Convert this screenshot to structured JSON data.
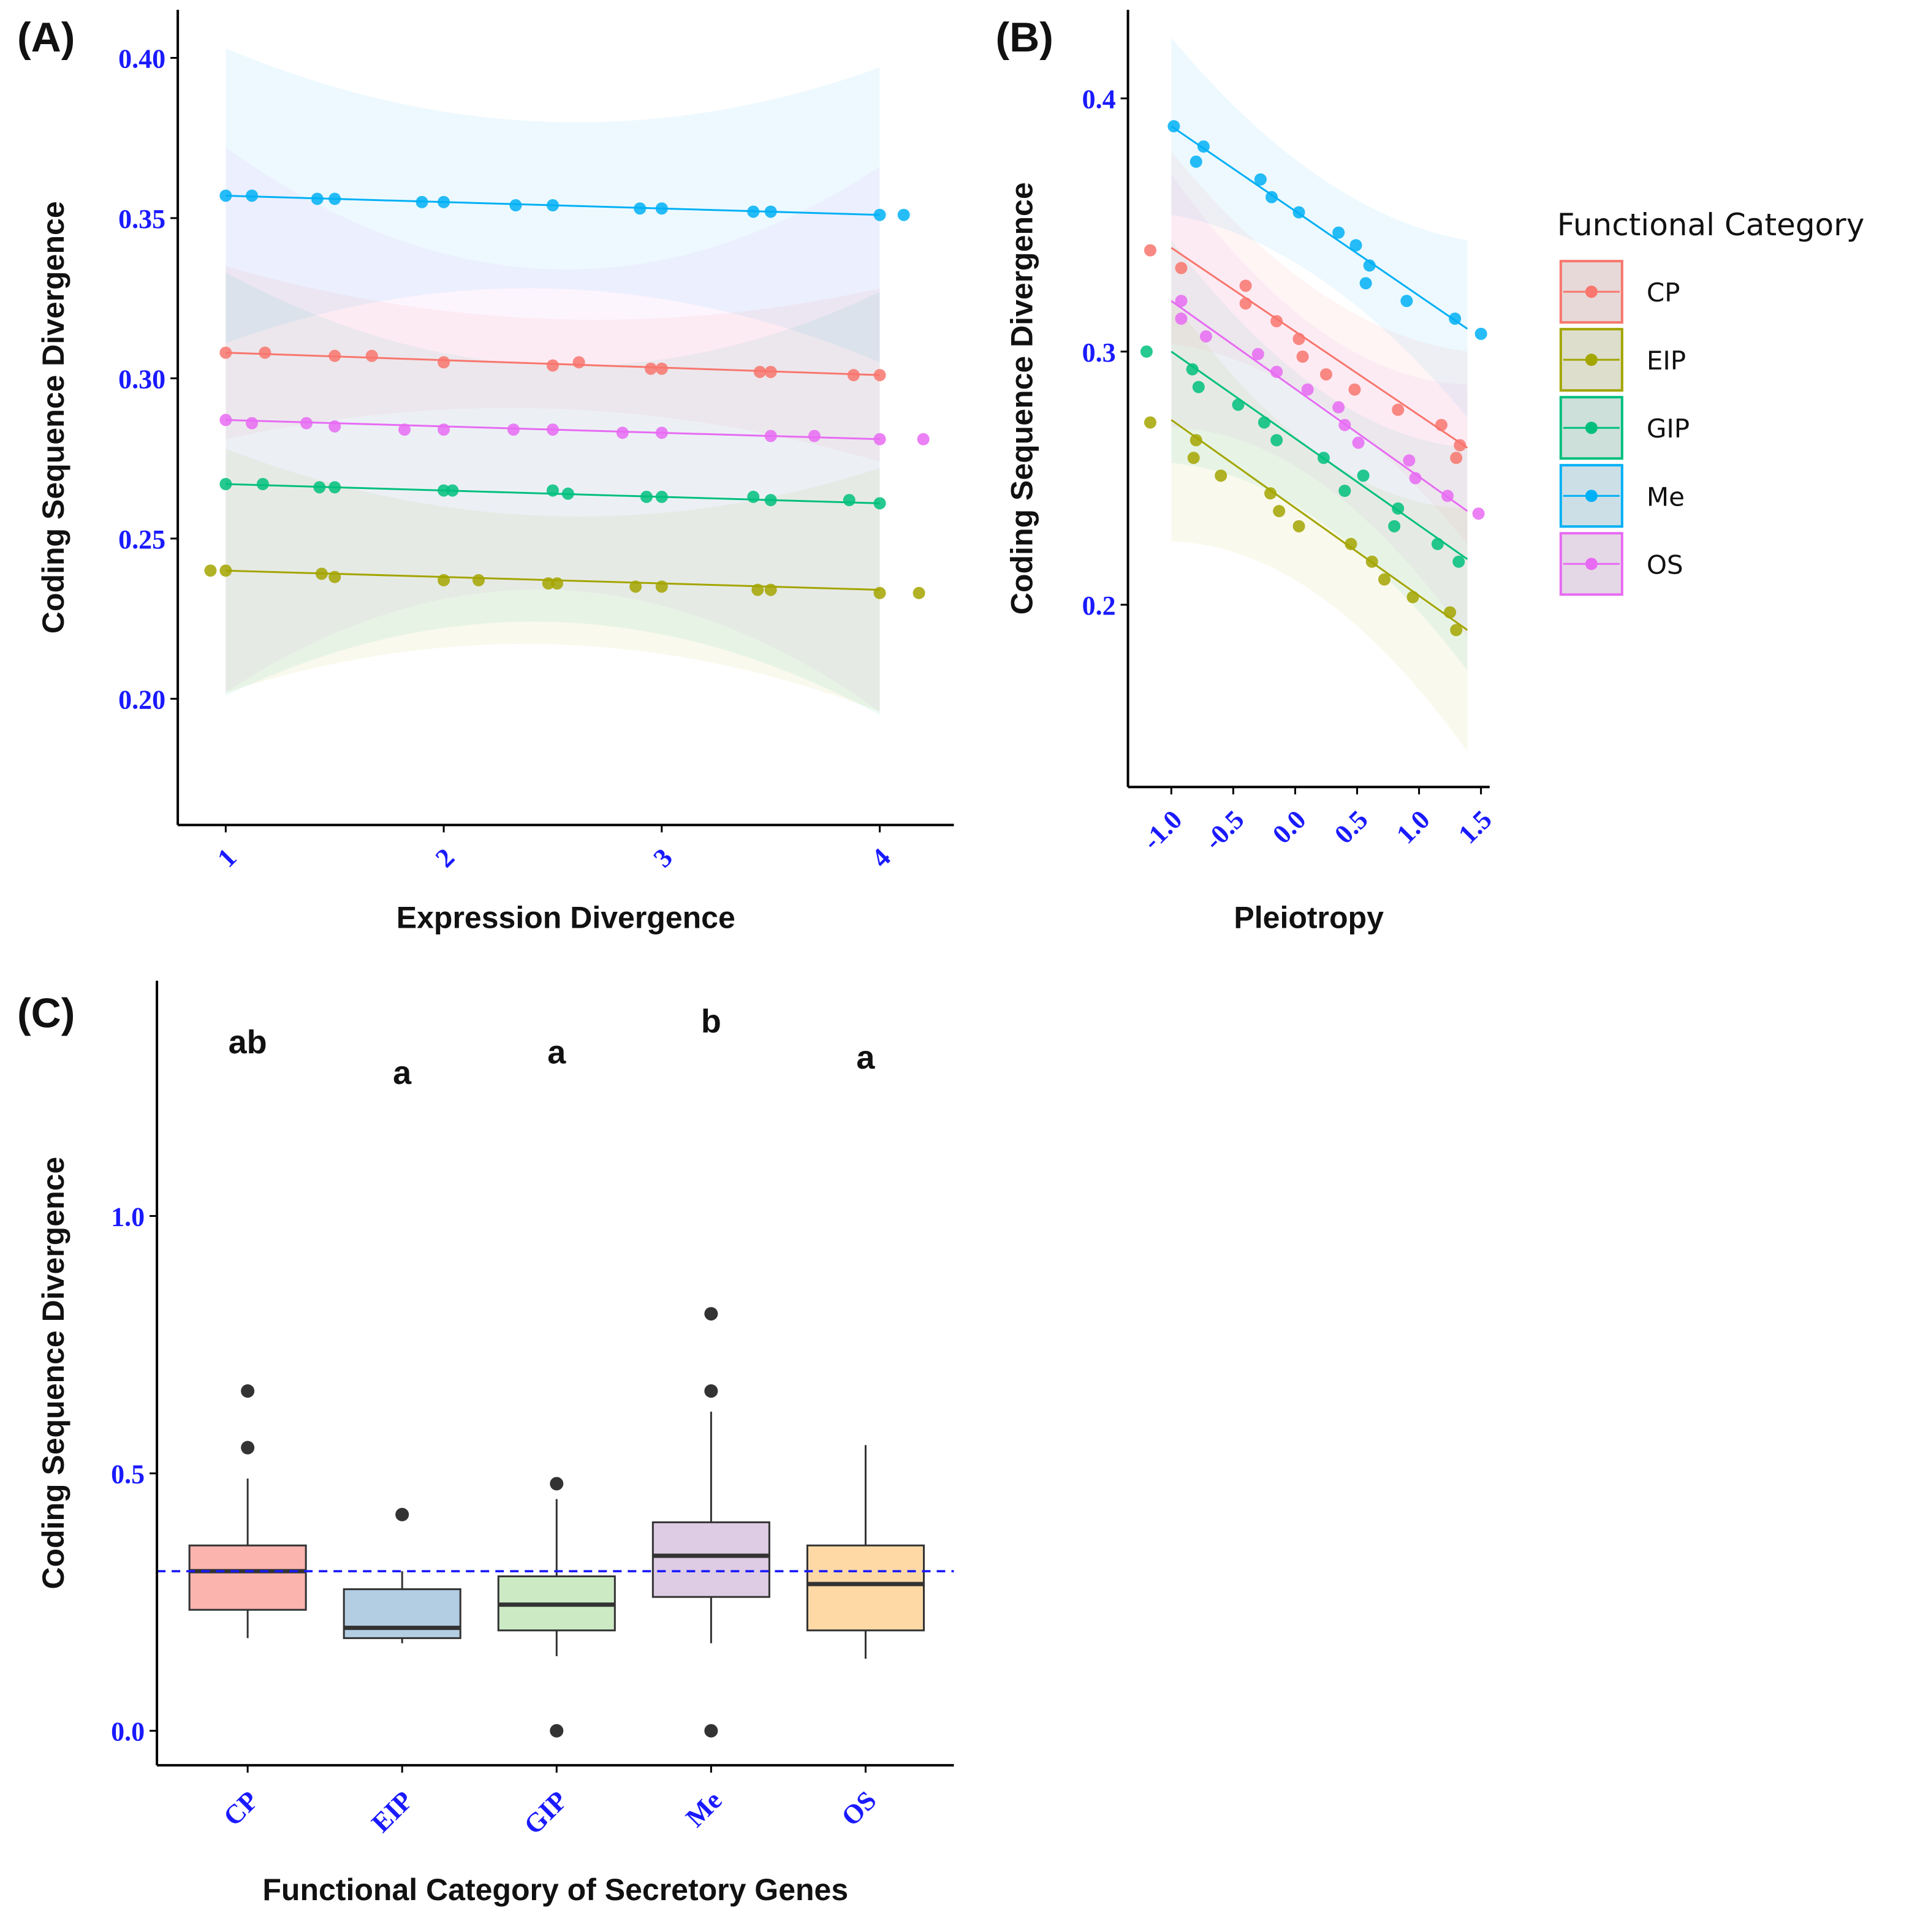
{
  "legend": {
    "title": "Functional Category",
    "entries": [
      {
        "label": "CP",
        "color": "#F8766D"
      },
      {
        "label": "EIP",
        "color": "#A3A500"
      },
      {
        "label": "GIP",
        "color": "#00BF7D"
      },
      {
        "label": "Me",
        "color": "#00B0F6"
      },
      {
        "label": "OS",
        "color": "#E76BF3"
      }
    ]
  },
  "chart_data": [
    {
      "panel_label": "(A)",
      "type": "scatter",
      "xlabel": "Expression Divergence",
      "ylabel": "Coding Sequence Divergence",
      "xlim": [
        0.78,
        4.34
      ],
      "ylim": [
        0.1606,
        0.415
      ],
      "xticks": [
        1,
        2,
        3,
        4
      ],
      "xtick_labels": [
        "1",
        "2",
        "3",
        "4"
      ],
      "yticks": [
        0.2,
        0.25,
        0.3,
        0.35,
        0.4
      ],
      "ytick_labels": [
        "0.20",
        "0.25",
        "0.30",
        "0.35",
        "0.40"
      ],
      "series": [
        {
          "name": "CP",
          "color": "#F8766D",
          "fit": {
            "x": [
              1,
              4
            ],
            "y": [
              0.308,
              0.301
            ]
          },
          "ci_halfwidth": {
            "ends": 0.027,
            "mid": 0.014
          },
          "points": [
            [
              1,
              0.308
            ],
            [
              1.18,
              0.308
            ],
            [
              1.5,
              0.307
            ],
            [
              1.67,
              0.307
            ],
            [
              2,
              0.305
            ],
            [
              2.5,
              0.304
            ],
            [
              2.62,
              0.305
            ],
            [
              2.95,
              0.303
            ],
            [
              3,
              0.303
            ],
            [
              3.45,
              0.302
            ],
            [
              3.5,
              0.302
            ],
            [
              3.88,
              0.301
            ],
            [
              4,
              0.301
            ]
          ]
        },
        {
          "name": "EIP",
          "color": "#A3A500",
          "fit": {
            "x": [
              1,
              4
            ],
            "y": [
              0.24,
              0.234
            ]
          },
          "ci_halfwidth": {
            "ends": 0.038,
            "mid": 0.02
          },
          "points": [
            [
              0.93,
              0.24
            ],
            [
              1,
              0.24
            ],
            [
              1.44,
              0.239
            ],
            [
              1.5,
              0.238
            ],
            [
              2,
              0.237
            ],
            [
              2.16,
              0.237
            ],
            [
              2.48,
              0.236
            ],
            [
              2.52,
              0.236
            ],
            [
              2.88,
              0.235
            ],
            [
              3,
              0.235
            ],
            [
              3.44,
              0.234
            ],
            [
              3.5,
              0.234
            ],
            [
              4,
              0.233
            ],
            [
              4.18,
              0.233
            ]
          ]
        },
        {
          "name": "GIP",
          "color": "#00BF7D",
          "fit": {
            "x": [
              1,
              4
            ],
            "y": [
              0.267,
              0.261
            ]
          },
          "ci_halfwidth": {
            "ends": 0.066,
            "mid": 0.04
          },
          "points": [
            [
              1,
              0.267
            ],
            [
              1.17,
              0.267
            ],
            [
              1.43,
              0.266
            ],
            [
              1.5,
              0.266
            ],
            [
              2,
              0.265
            ],
            [
              2.04,
              0.265
            ],
            [
              2.5,
              0.265
            ],
            [
              2.57,
              0.264
            ],
            [
              2.93,
              0.263
            ],
            [
              3,
              0.263
            ],
            [
              3.42,
              0.263
            ],
            [
              3.5,
              0.262
            ],
            [
              3.86,
              0.262
            ],
            [
              4,
              0.261
            ]
          ]
        },
        {
          "name": "Me",
          "color": "#00B0F6",
          "fit": {
            "x": [
              1,
              4
            ],
            "y": [
              0.357,
              0.351
            ]
          },
          "ci_halfwidth": {
            "ends": 0.046,
            "mid": 0.026
          },
          "points": [
            [
              1,
              0.357
            ],
            [
              1.12,
              0.357
            ],
            [
              1.42,
              0.356
            ],
            [
              1.5,
              0.356
            ],
            [
              1.9,
              0.355
            ],
            [
              2,
              0.355
            ],
            [
              2.33,
              0.354
            ],
            [
              2.5,
              0.354
            ],
            [
              2.9,
              0.353
            ],
            [
              3,
              0.353
            ],
            [
              3.42,
              0.352
            ],
            [
              3.5,
              0.352
            ],
            [
              4,
              0.351
            ],
            [
              4.11,
              0.351
            ]
          ]
        },
        {
          "name": "OS",
          "color": "#E76BF3",
          "fit": {
            "x": [
              1,
              4
            ],
            "y": [
              0.287,
              0.281
            ]
          },
          "ci_halfwidth": {
            "ends": 0.085,
            "mid": 0.05
          },
          "points": [
            [
              1,
              0.287
            ],
            [
              1.12,
              0.286
            ],
            [
              1.37,
              0.286
            ],
            [
              1.5,
              0.285
            ],
            [
              1.82,
              0.284
            ],
            [
              2,
              0.284
            ],
            [
              2.32,
              0.284
            ],
            [
              2.5,
              0.284
            ],
            [
              2.82,
              0.283
            ],
            [
              3,
              0.283
            ],
            [
              3.5,
              0.282
            ],
            [
              3.7,
              0.282
            ],
            [
              4,
              0.281
            ],
            [
              4.2,
              0.281
            ]
          ]
        }
      ]
    },
    {
      "panel_label": "(B)",
      "type": "scatter",
      "xlabel": "Pleiotropy",
      "ylabel": "Coding Sequence Divergence",
      "xlim": [
        -1.35,
        1.57
      ],
      "ylim": [
        0.128,
        0.435
      ],
      "xticks": [
        -1.0,
        -0.5,
        0.0,
        0.5,
        1.0,
        1.5
      ],
      "xtick_labels": [
        "-1.0",
        "-0.5",
        "0.0",
        "0.5",
        "1.0",
        "1.5"
      ],
      "yticks": [
        0.2,
        0.3,
        0.4
      ],
      "ytick_labels": [
        "0.2",
        "0.3",
        "0.4"
      ],
      "series": [
        {
          "name": "CP",
          "color": "#F8766D",
          "fit": {
            "x": [
              -1,
              1.39
            ],
            "y": [
              0.341,
              0.262
            ]
          },
          "ci_halfwidth": {
            "ends": 0.038,
            "mid": 0.022
          },
          "points": [
            [
              -1.17,
              0.34
            ],
            [
              -0.92,
              0.333
            ],
            [
              -0.4,
              0.326
            ],
            [
              -0.4,
              0.319
            ],
            [
              -0.15,
              0.312
            ],
            [
              0.03,
              0.305
            ],
            [
              0.06,
              0.298
            ],
            [
              0.25,
              0.291
            ],
            [
              0.48,
              0.285
            ],
            [
              0.83,
              0.277
            ],
            [
              1.18,
              0.271
            ],
            [
              1.33,
              0.263
            ],
            [
              1.3,
              0.258
            ]
          ]
        },
        {
          "name": "EIP",
          "color": "#A3A500",
          "fit": {
            "x": [
              -1,
              1.39
            ],
            "y": [
              0.273,
              0.19
            ]
          },
          "ci_halfwidth": {
            "ends": 0.048,
            "mid": 0.028
          },
          "points": [
            [
              -1.17,
              0.272
            ],
            [
              -0.8,
              0.265
            ],
            [
              -0.82,
              0.258
            ],
            [
              -0.6,
              0.251
            ],
            [
              -0.2,
              0.244
            ],
            [
              -0.13,
              0.237
            ],
            [
              0.03,
              0.231
            ],
            [
              0.45,
              0.224
            ],
            [
              0.62,
              0.217
            ],
            [
              0.72,
              0.21
            ],
            [
              0.95,
              0.203
            ],
            [
              1.25,
              0.197
            ],
            [
              1.3,
              0.19
            ]
          ]
        },
        {
          "name": "GIP",
          "color": "#00BF7D",
          "fit": {
            "x": [
              -1,
              1.39
            ],
            "y": [
              0.3,
              0.218
            ]
          },
          "ci_halfwidth": {
            "ends": 0.044,
            "mid": 0.026
          },
          "points": [
            [
              -1.2,
              0.3
            ],
            [
              -0.83,
              0.293
            ],
            [
              -0.78,
              0.286
            ],
            [
              -0.46,
              0.279
            ],
            [
              -0.25,
              0.272
            ],
            [
              -0.15,
              0.265
            ],
            [
              0.23,
              0.258
            ],
            [
              0.4,
              0.245
            ],
            [
              0.55,
              0.251
            ],
            [
              0.83,
              0.238
            ],
            [
              0.8,
              0.231
            ],
            [
              1.15,
              0.224
            ],
            [
              1.32,
              0.217
            ]
          ]
        },
        {
          "name": "Me",
          "color": "#00B0F6",
          "fit": {
            "x": [
              -1,
              1.39
            ],
            "y": [
              0.389,
              0.309
            ]
          },
          "ci_halfwidth": {
            "ends": 0.035,
            "mid": 0.02
          },
          "points": [
            [
              -0.98,
              0.389
            ],
            [
              -0.8,
              0.375
            ],
            [
              -0.74,
              0.381
            ],
            [
              -0.28,
              0.368
            ],
            [
              -0.19,
              0.361
            ],
            [
              0.03,
              0.355
            ],
            [
              0.35,
              0.347
            ],
            [
              0.49,
              0.342
            ],
            [
              0.6,
              0.334
            ],
            [
              0.57,
              0.327
            ],
            [
              0.9,
              0.32
            ],
            [
              1.29,
              0.313
            ],
            [
              1.5,
              0.307
            ]
          ]
        },
        {
          "name": "OS",
          "color": "#E76BF3",
          "fit": {
            "x": [
              -1,
              1.39
            ],
            "y": [
              0.32,
              0.237
            ]
          },
          "ci_halfwidth": {
            "ends": 0.05,
            "mid": 0.03
          },
          "points": [
            [
              -0.92,
              0.32
            ],
            [
              -0.92,
              0.313
            ],
            [
              -0.72,
              0.306
            ],
            [
              -0.3,
              0.299
            ],
            [
              -0.15,
              0.292
            ],
            [
              0.1,
              0.285
            ],
            [
              0.35,
              0.278
            ],
            [
              0.4,
              0.271
            ],
            [
              0.51,
              0.264
            ],
            [
              0.92,
              0.257
            ],
            [
              0.97,
              0.25
            ],
            [
              1.23,
              0.243
            ],
            [
              1.48,
              0.236
            ]
          ]
        }
      ]
    },
    {
      "panel_label": "(C)",
      "type": "box",
      "xlabel": "Functional Category of Secretory Genes",
      "ylabel": "Coding Sequence Divergence",
      "ylim": [
        -0.067,
        1.457
      ],
      "yticks": [
        0.0,
        0.5,
        1.0
      ],
      "ytick_labels": [
        "0.0",
        "0.5",
        "1.0"
      ],
      "reference_line": 0.31,
      "categories": [
        "CP",
        "EIP",
        "GIP",
        "Me",
        "OS"
      ],
      "boxes": [
        {
          "name": "CP",
          "fill": "#FBB4AE",
          "min": 0.18,
          "q1": 0.235,
          "median": 0.31,
          "q3": 0.36,
          "max": 0.49,
          "outliers": [
            0.55,
            0.66
          ],
          "letter": "ab",
          "letter_y": 1.34
        },
        {
          "name": "EIP",
          "fill": "#B3CDE3",
          "min": 0.17,
          "q1": 0.18,
          "median": 0.2,
          "q3": 0.275,
          "max": 0.31,
          "outliers": [
            0.42
          ],
          "letter": "a",
          "letter_y": 1.28
        },
        {
          "name": "GIP",
          "fill": "#CCEBC5",
          "min": 0.145,
          "q1": 0.195,
          "median": 0.245,
          "q3": 0.3,
          "max": 0.45,
          "outliers": [
            0.48,
            0.0
          ],
          "letter": "a",
          "letter_y": 1.32
        },
        {
          "name": "Me",
          "fill": "#DECBE4",
          "min": 0.17,
          "q1": 0.26,
          "median": 0.34,
          "q3": 0.405,
          "max": 0.62,
          "outliers": [
            0.81,
            0.66,
            0.0
          ],
          "letter": "b",
          "letter_y": 1.38
        },
        {
          "name": "OS",
          "fill": "#FED9A6",
          "min": 0.14,
          "q1": 0.195,
          "median": 0.285,
          "q3": 0.36,
          "max": 0.555,
          "outliers": [],
          "letter": "a",
          "letter_y": 1.31
        }
      ]
    }
  ]
}
